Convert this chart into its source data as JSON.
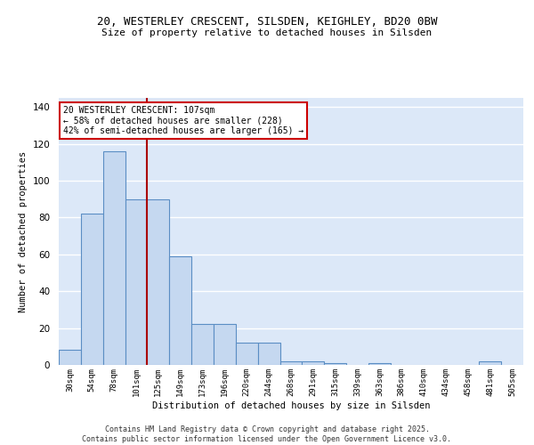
{
  "title1": "20, WESTERLEY CRESCENT, SILSDEN, KEIGHLEY, BD20 0BW",
  "title2": "Size of property relative to detached houses in Silsden",
  "xlabel": "Distribution of detached houses by size in Silsden",
  "ylabel": "Number of detached properties",
  "categories": [
    "30sqm",
    "54sqm",
    "78sqm",
    "101sqm",
    "125sqm",
    "149sqm",
    "173sqm",
    "196sqm",
    "220sqm",
    "244sqm",
    "268sqm",
    "291sqm",
    "315sqm",
    "339sqm",
    "363sqm",
    "386sqm",
    "410sqm",
    "434sqm",
    "458sqm",
    "481sqm",
    "505sqm"
  ],
  "values": [
    8,
    82,
    116,
    90,
    90,
    59,
    22,
    22,
    12,
    12,
    2,
    2,
    1,
    0,
    1,
    0,
    0,
    0,
    0,
    2,
    0
  ],
  "bar_color": "#c5d8f0",
  "bar_edge_color": "#5b8ec4",
  "background_color": "#dce8f8",
  "grid_color": "#ffffff",
  "vline_x": 3.5,
  "vline_color": "#aa0000",
  "annotation_text": "20 WESTERLEY CRESCENT: 107sqm\n← 58% of detached houses are smaller (228)\n42% of semi-detached houses are larger (165) →",
  "annotation_box_color": "#ffffff",
  "annotation_box_edge": "#cc0000",
  "ylim": [
    0,
    145
  ],
  "yticks": [
    0,
    20,
    40,
    60,
    80,
    100,
    120,
    140
  ],
  "footer1": "Contains HM Land Registry data © Crown copyright and database right 2025.",
  "footer2": "Contains public sector information licensed under the Open Government Licence v3.0."
}
